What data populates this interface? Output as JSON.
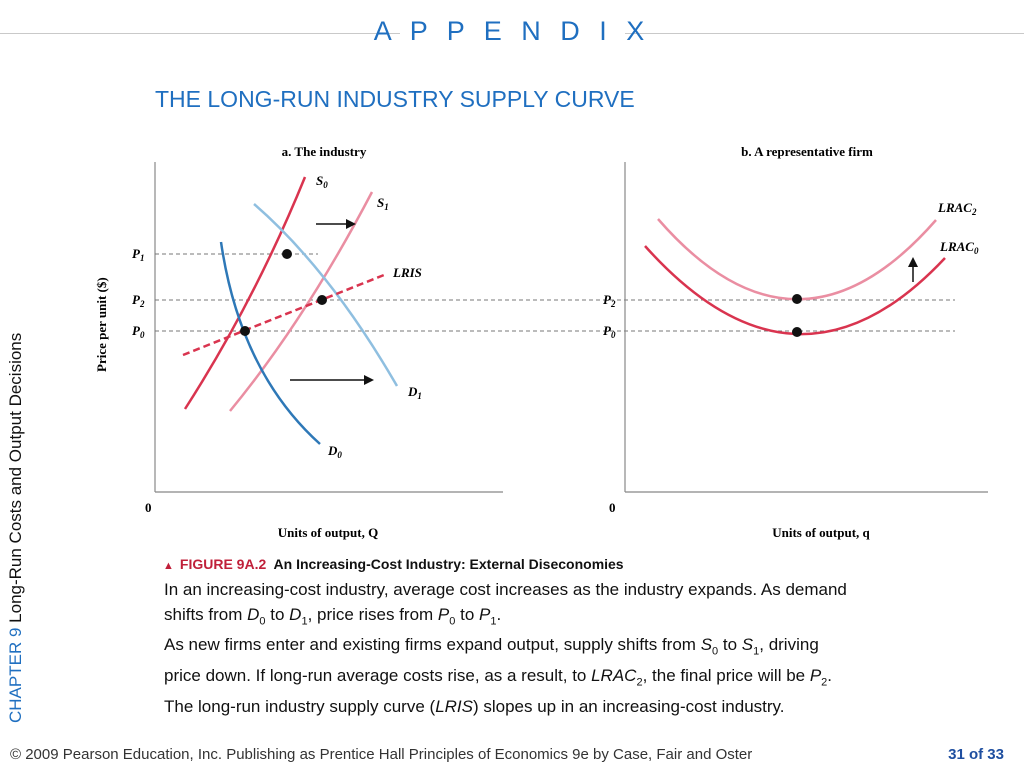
{
  "header": {
    "appendix": "A P P E N D I X",
    "title": "THE LONG-RUN INDUSTRY SUPPLY CURVE"
  },
  "side": {
    "chapter": "CHAPTER 9",
    "topic": "Long-Run Costs and Output Decisions"
  },
  "panel_a": {
    "title": "a. The industry",
    "ylabel": "Price per unit ($)",
    "xlabel": "Units of output, Q",
    "origin": "0",
    "price_labels": [
      "P",
      "P",
      "P"
    ],
    "price_subs": [
      "1",
      "2",
      "0"
    ],
    "curves": {
      "s0": {
        "base": "S",
        "sub": "0"
      },
      "s1": {
        "base": "S",
        "sub": "1"
      },
      "lris": "LRIS",
      "d1": {
        "base": "D",
        "sub": "1"
      },
      "d0": {
        "base": "D",
        "sub": "0"
      }
    }
  },
  "panel_b": {
    "title": "b. A representative firm",
    "xlabel": "Units of output, q",
    "origin": "0",
    "price_labels": [
      "P",
      "P"
    ],
    "price_subs": [
      "2",
      "0"
    ],
    "curves": {
      "lrac2": {
        "base": "LRAC",
        "sub": "2"
      },
      "lrac0": {
        "base": "LRAC",
        "sub": "0"
      }
    }
  },
  "colors": {
    "supply": "#d9344f",
    "supply_light": "#ea8ea2",
    "demand": "#2e78b7",
    "demand_light": "#8fbfe0",
    "title_blue": "#1f6fc0"
  },
  "caption": {
    "figure": "FIGURE 9A.2",
    "title": "An Increasing-Cost Industry: External Diseconomies"
  },
  "description": {
    "l1": "In an increasing-cost industry, average cost increases as the industry expands. As demand",
    "l2a": "shifts from ",
    "l2d": "D",
    "l2s0": "0",
    "l2b": " to ",
    "l2s1": "1",
    "l2c": ", price rises from ",
    "l2p": "P",
    "l2ps0": "0",
    "l2e": " to ",
    "l2ps1": "1",
    "l2f": ".",
    "l3a": "As new firms enter and existing firms expand output, supply shifts from ",
    "l3s": "S",
    "l3s0": "0",
    "l3b": " to ",
    "l3s1": "1",
    "l3c": ", driving",
    "l4a": "price down. If long-run average costs rise, as a result, to ",
    "l4lrac": "LRAC",
    "l4sub": "2",
    "l4b": ", the final price will be ",
    "l4p": "P",
    "l4psub": "2",
    "l4c": ".",
    "l5a": "The long-run industry supply curve (",
    "l5lris": "LRIS",
    "l5b": ") slopes up in an increasing-cost industry."
  },
  "footer": {
    "left": "© 2009 Pearson Education, Inc. Publishing as Prentice Hall   Principles of Economics 9e by Case, Fair and Oster",
    "page": "31 of 33"
  }
}
